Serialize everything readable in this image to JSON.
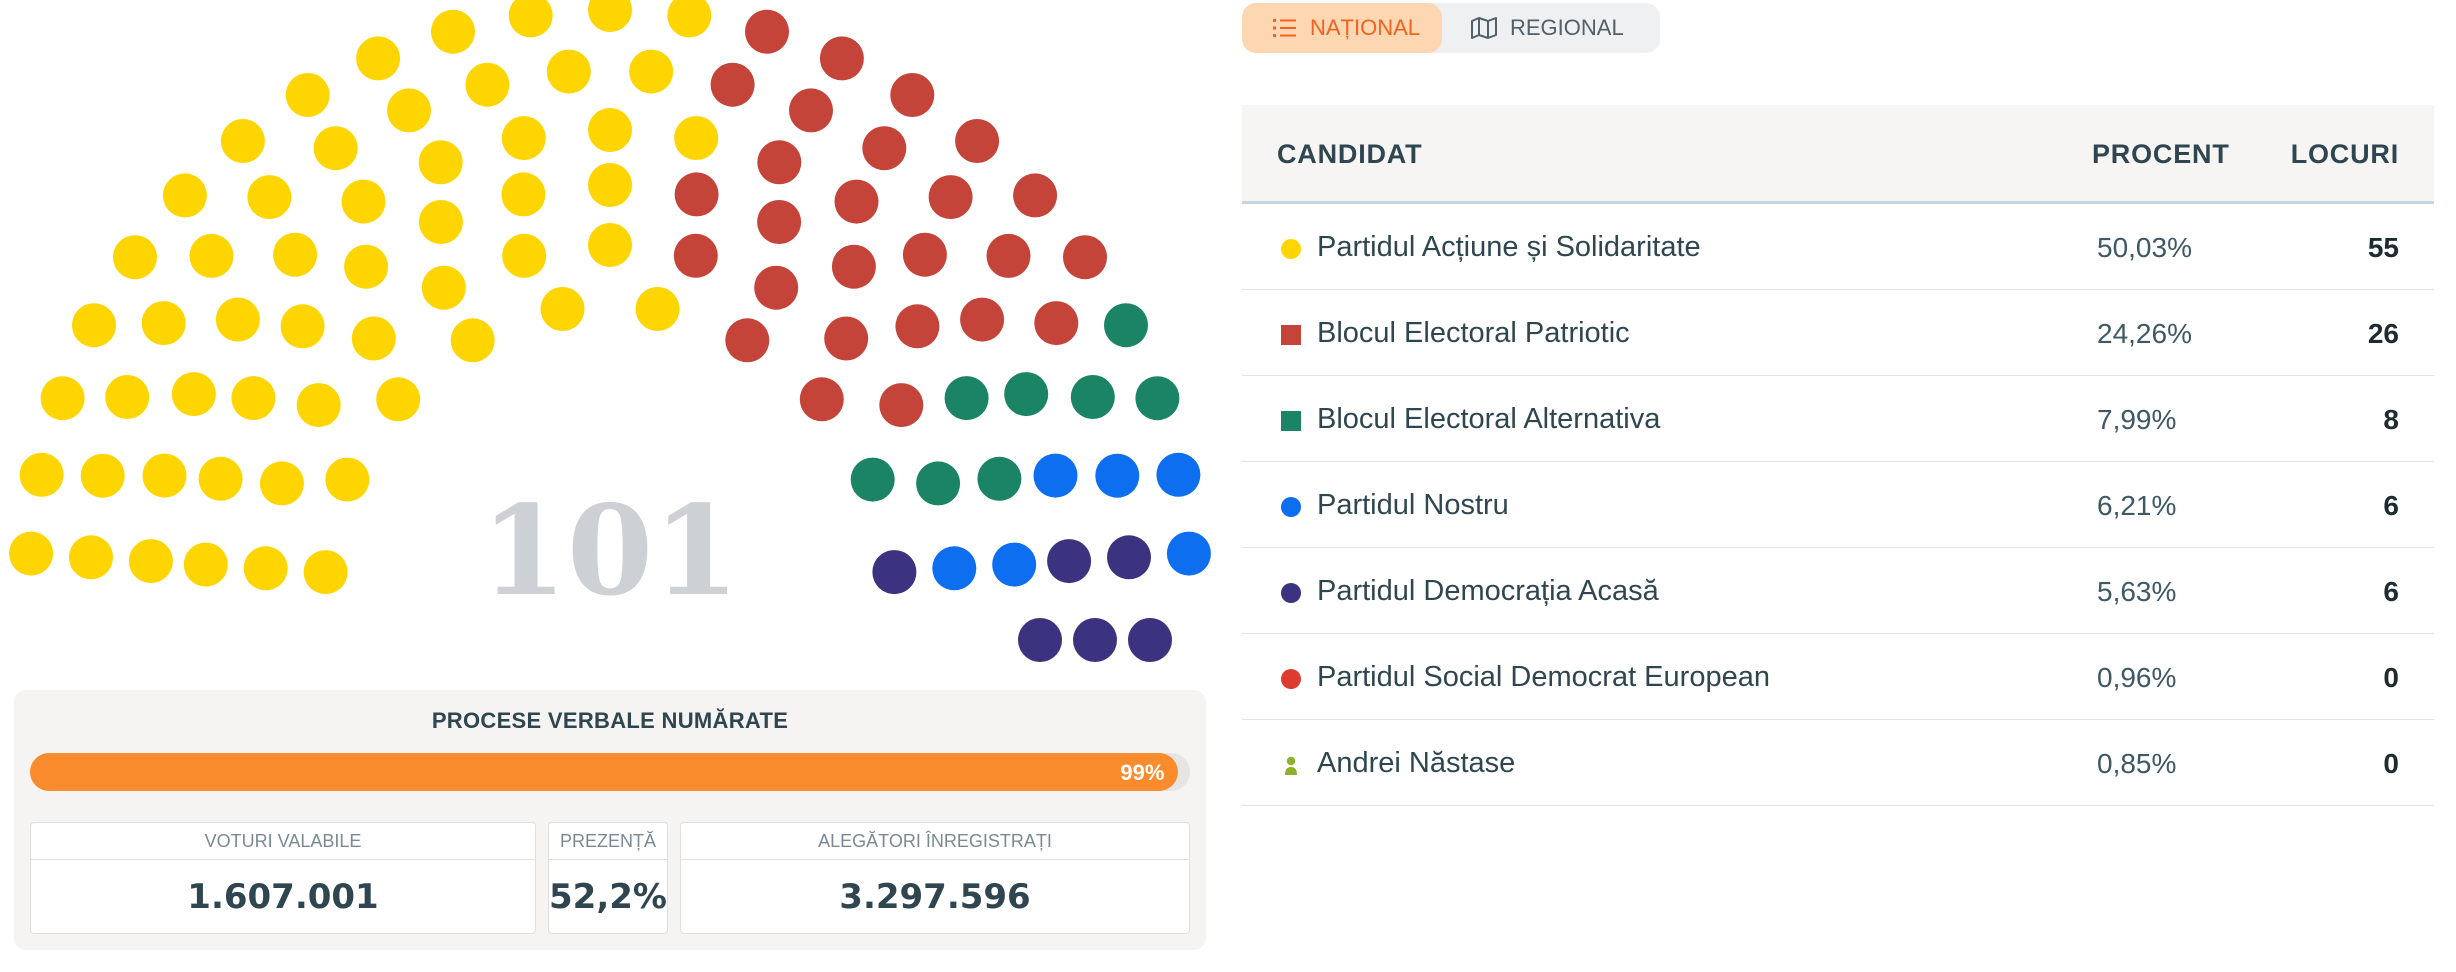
{
  "parliament": {
    "total_seats": "101",
    "parties": [
      {
        "name": "Partidul Acțiune și Solidaritate",
        "seats": 55,
        "color": "#ffd500"
      },
      {
        "name": "Blocul Electoral Patriotic",
        "seats": 26,
        "color": "#c5443a"
      },
      {
        "name": "Blocul Electoral Alternativa",
        "seats": 8,
        "color": "#1b8464"
      },
      {
        "name": "Partidul Nostru",
        "seats": 6,
        "color": "#0e6ef0"
      },
      {
        "name": "Partidul Democrația Acasă",
        "seats": 6,
        "color": "#3b3280"
      }
    ]
  },
  "stats": {
    "title": "PROCESE VERBALE NUMĂRATE",
    "progress_percent": 99,
    "progress_label": "99%",
    "boxes": [
      {
        "label": "VOTURI VALABILE",
        "value": "1.607.001"
      },
      {
        "label": "PREZENȚĂ",
        "value": "52,2%"
      },
      {
        "label": "ALEGĂTORI ÎNREGISTRAȚI",
        "value": "3.297.596"
      }
    ]
  },
  "toggle": {
    "national": "NAȚIONAL",
    "regional": "REGIONAL",
    "national_icon": "list-icon",
    "regional_icon": "map-icon"
  },
  "table": {
    "headers": {
      "candidate": "CANDIDAT",
      "percent": "PROCENT",
      "seats": "LOCURI"
    },
    "rows": [
      {
        "name": "Partidul Acțiune și Solidaritate",
        "percent": "50,03%",
        "seats": "55",
        "color": "#ffd500",
        "marker": "circle"
      },
      {
        "name": "Blocul Electoral Patriotic",
        "percent": "24,26%",
        "seats": "26",
        "color": "#c5443a",
        "marker": "square"
      },
      {
        "name": "Blocul Electoral Alternativa",
        "percent": "7,99%",
        "seats": "8",
        "color": "#1b8464",
        "marker": "square"
      },
      {
        "name": "Partidul Nostru",
        "percent": "6,21%",
        "seats": "6",
        "color": "#0e6ef0",
        "marker": "circle"
      },
      {
        "name": "Partidul Democrația Acasă",
        "percent": "5,63%",
        "seats": "6",
        "color": "#3b3280",
        "marker": "circle"
      },
      {
        "name": "Partidul Social Democrat European",
        "percent": "0,96%",
        "seats": "0",
        "color": "#dc3b30",
        "marker": "circle"
      },
      {
        "name": "Andrei Năstase",
        "percent": "0,85%",
        "seats": "0",
        "color": "#8fb02a",
        "marker": "person-icon"
      }
    ]
  }
}
